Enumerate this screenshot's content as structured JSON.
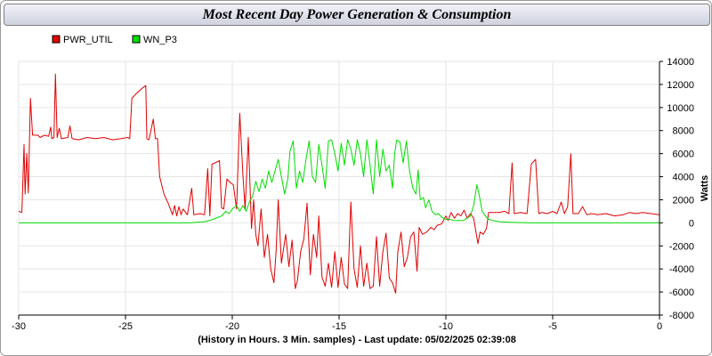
{
  "chart_data": {
    "type": "line",
    "title": "Most Recent Day Power Generation & Consumption",
    "xlabel": "(History in Hours. 3 Min. samples) - Last update: 05/02/2025 02:39:08",
    "ylabel": "Watts",
    "xlim": [
      -30,
      0
    ],
    "ylim": [
      -8000,
      14000
    ],
    "x_ticks": [
      -30,
      -25,
      -20,
      -15,
      -10,
      -5,
      0
    ],
    "y_ticks": [
      -8000,
      -6000,
      -4000,
      -2000,
      0,
      2000,
      4000,
      6000,
      8000,
      10000,
      12000,
      14000
    ],
    "grid": true,
    "legend_position": "top-left",
    "series": [
      {
        "name": "PWR_UTIL",
        "color": "#e00000",
        "points": [
          [
            -30.0,
            1000
          ],
          [
            -29.85,
            900
          ],
          [
            -29.75,
            6800
          ],
          [
            -29.7,
            2500
          ],
          [
            -29.62,
            6000
          ],
          [
            -29.55,
            2600
          ],
          [
            -29.45,
            10800
          ],
          [
            -29.35,
            7600
          ],
          [
            -29.1,
            7600
          ],
          [
            -29.0,
            7400
          ],
          [
            -28.8,
            7600
          ],
          [
            -28.6,
            7500
          ],
          [
            -28.5,
            8300
          ],
          [
            -28.45,
            7300
          ],
          [
            -28.35,
            7400
          ],
          [
            -28.28,
            12900
          ],
          [
            -28.2,
            7400
          ],
          [
            -28.1,
            8200
          ],
          [
            -28.0,
            7300
          ],
          [
            -27.7,
            7400
          ],
          [
            -27.6,
            8400
          ],
          [
            -27.5,
            7300
          ],
          [
            -27.2,
            7200
          ],
          [
            -26.8,
            7400
          ],
          [
            -26.4,
            7300
          ],
          [
            -26.0,
            7400
          ],
          [
            -25.6,
            7200
          ],
          [
            -25.2,
            7300
          ],
          [
            -24.9,
            7400
          ],
          [
            -24.8,
            7300
          ],
          [
            -24.7,
            10800
          ],
          [
            -24.5,
            11200
          ],
          [
            -24.2,
            11700
          ],
          [
            -24.05,
            11900
          ],
          [
            -24.0,
            7300
          ],
          [
            -23.9,
            7200
          ],
          [
            -23.7,
            9000
          ],
          [
            -23.6,
            7300
          ],
          [
            -23.5,
            7300
          ],
          [
            -23.4,
            4000
          ],
          [
            -23.2,
            2500
          ],
          [
            -23.0,
            1700
          ],
          [
            -22.8,
            700
          ],
          [
            -22.7,
            1500
          ],
          [
            -22.6,
            600
          ],
          [
            -22.5,
            1400
          ],
          [
            -22.4,
            700
          ],
          [
            -22.3,
            1200
          ],
          [
            -22.1,
            700
          ],
          [
            -21.9,
            3000
          ],
          [
            -21.8,
            700
          ],
          [
            -21.5,
            800
          ],
          [
            -21.3,
            700
          ],
          [
            -21.15,
            4700
          ],
          [
            -21.05,
            600
          ],
          [
            -20.95,
            5100
          ],
          [
            -20.8,
            5200
          ],
          [
            -20.6,
            5400
          ],
          [
            -20.5,
            1300
          ],
          [
            -20.4,
            1200
          ],
          [
            -20.25,
            3800
          ],
          [
            -20.1,
            3500
          ],
          [
            -19.95,
            3300
          ],
          [
            -19.8,
            1200
          ],
          [
            -19.65,
            9500
          ],
          [
            -19.5,
            4100
          ],
          [
            -19.4,
            1200
          ],
          [
            -19.25,
            7400
          ],
          [
            -19.1,
            -500
          ],
          [
            -19.0,
            2000
          ],
          [
            -18.9,
            -1000
          ],
          [
            -18.8,
            -2000
          ],
          [
            -18.65,
            1200
          ],
          [
            -18.5,
            -3000
          ],
          [
            -18.35,
            -1000
          ],
          [
            -18.2,
            -4000
          ],
          [
            -18.05,
            -5200
          ],
          [
            -17.95,
            -2500
          ],
          [
            -17.85,
            2000
          ],
          [
            -17.7,
            -3500
          ],
          [
            -17.5,
            -1000
          ],
          [
            -17.35,
            -3800
          ],
          [
            -17.2,
            -1500
          ],
          [
            -17.05,
            -5700
          ],
          [
            -16.95,
            -5000
          ],
          [
            -16.8,
            -2500
          ],
          [
            -16.65,
            -1400
          ],
          [
            -16.5,
            1700
          ],
          [
            -16.35,
            -4500
          ],
          [
            -16.2,
            -1000
          ],
          [
            -16.05,
            -3000
          ],
          [
            -15.95,
            600
          ],
          [
            -15.8,
            -4700
          ],
          [
            -15.65,
            -5500
          ],
          [
            -15.5,
            -3500
          ],
          [
            -15.35,
            -5600
          ],
          [
            -15.2,
            -2500
          ],
          [
            -15.05,
            -5600
          ],
          [
            -14.9,
            -3000
          ],
          [
            -14.75,
            -5300
          ],
          [
            -14.6,
            -5700
          ],
          [
            -14.45,
            1800
          ],
          [
            -14.3,
            -4000
          ],
          [
            -14.15,
            -5600
          ],
          [
            -14.0,
            -2000
          ],
          [
            -13.85,
            -5500
          ],
          [
            -13.7,
            -3500
          ],
          [
            -13.55,
            -5700
          ],
          [
            -13.4,
            -5500
          ],
          [
            -13.25,
            -1200
          ],
          [
            -13.1,
            -5500
          ],
          [
            -12.95,
            -2500
          ],
          [
            -12.8,
            -900
          ],
          [
            -12.65,
            -4800
          ],
          [
            -12.5,
            -5200
          ],
          [
            -12.35,
            -6100
          ],
          [
            -12.25,
            -2500
          ],
          [
            -12.1,
            -800
          ],
          [
            -11.95,
            -3800
          ],
          [
            -11.8,
            -3000
          ],
          [
            -11.65,
            -1200
          ],
          [
            -11.5,
            -800
          ],
          [
            -11.35,
            -4200
          ],
          [
            -11.25,
            -400
          ],
          [
            -11.1,
            -1000
          ],
          [
            -10.9,
            -800
          ],
          [
            -10.7,
            -400
          ],
          [
            -10.55,
            -600
          ],
          [
            -10.4,
            -200
          ],
          [
            -10.2,
            -100
          ],
          [
            -10.0,
            600
          ],
          [
            -9.9,
            200
          ],
          [
            -9.75,
            900
          ],
          [
            -9.6,
            400
          ],
          [
            -9.45,
            800
          ],
          [
            -9.3,
            600
          ],
          [
            -9.15,
            1100
          ],
          [
            -9.0,
            400
          ],
          [
            -8.85,
            800
          ],
          [
            -8.7,
            400
          ],
          [
            -8.5,
            -1800
          ],
          [
            -8.4,
            -800
          ],
          [
            -8.25,
            -1000
          ],
          [
            -8.1,
            -500
          ],
          [
            -8.0,
            900
          ],
          [
            -7.8,
            900
          ],
          [
            -7.5,
            900
          ],
          [
            -7.25,
            1000
          ],
          [
            -7.05,
            800
          ],
          [
            -6.9,
            5200
          ],
          [
            -6.8,
            800
          ],
          [
            -6.5,
            900
          ],
          [
            -6.2,
            800
          ],
          [
            -6.0,
            5100
          ],
          [
            -5.8,
            5500
          ],
          [
            -5.65,
            800
          ],
          [
            -5.5,
            900
          ],
          [
            -5.25,
            800
          ],
          [
            -5.0,
            1000
          ],
          [
            -4.8,
            800
          ],
          [
            -4.6,
            1800
          ],
          [
            -4.45,
            800
          ],
          [
            -4.3,
            1400
          ],
          [
            -4.15,
            6000
          ],
          [
            -4.05,
            800
          ],
          [
            -3.8,
            800
          ],
          [
            -3.6,
            1400
          ],
          [
            -3.4,
            700
          ],
          [
            -3.2,
            800
          ],
          [
            -2.9,
            700
          ],
          [
            -2.5,
            800
          ],
          [
            -2.1,
            600
          ],
          [
            -1.7,
            700
          ],
          [
            -1.4,
            900
          ],
          [
            -1.1,
            800
          ],
          [
            -0.8,
            900
          ],
          [
            -0.4,
            800
          ],
          [
            0.0,
            700
          ]
        ]
      },
      {
        "name": "WN_P3",
        "color": "#00dd00",
        "points": [
          [
            -30.0,
            0
          ],
          [
            -22.0,
            0
          ],
          [
            -21.3,
            100
          ],
          [
            -20.9,
            300
          ],
          [
            -20.5,
            600
          ],
          [
            -20.3,
            1000
          ],
          [
            -20.15,
            800
          ],
          [
            -20.0,
            1200
          ],
          [
            -19.8,
            1500
          ],
          [
            -19.65,
            1000
          ],
          [
            -19.5,
            1500
          ],
          [
            -19.35,
            1000
          ],
          [
            -19.2,
            1800
          ],
          [
            -19.05,
            2300
          ],
          [
            -18.9,
            3600
          ],
          [
            -18.75,
            2700
          ],
          [
            -18.6,
            3800
          ],
          [
            -18.45,
            3000
          ],
          [
            -18.3,
            4500
          ],
          [
            -18.15,
            3500
          ],
          [
            -18.0,
            4500
          ],
          [
            -17.85,
            5500
          ],
          [
            -17.7,
            4000
          ],
          [
            -17.55,
            2500
          ],
          [
            -17.4,
            3800
          ],
          [
            -17.3,
            6200
          ],
          [
            -17.15,
            7100
          ],
          [
            -17.0,
            3000
          ],
          [
            -16.85,
            4500
          ],
          [
            -16.7,
            3500
          ],
          [
            -16.55,
            5500
          ],
          [
            -16.4,
            7100
          ],
          [
            -16.25,
            4000
          ],
          [
            -16.1,
            3500
          ],
          [
            -15.95,
            6800
          ],
          [
            -15.8,
            5000
          ],
          [
            -15.65,
            3000
          ],
          [
            -15.5,
            7100
          ],
          [
            -15.35,
            7200
          ],
          [
            -15.2,
            6000
          ],
          [
            -15.05,
            4500
          ],
          [
            -14.9,
            6900
          ],
          [
            -14.75,
            5000
          ],
          [
            -14.6,
            7200
          ],
          [
            -14.45,
            6400
          ],
          [
            -14.3,
            5000
          ],
          [
            -14.15,
            7200
          ],
          [
            -14.0,
            6000
          ],
          [
            -13.85,
            4000
          ],
          [
            -13.7,
            7200
          ],
          [
            -13.55,
            5000
          ],
          [
            -13.4,
            2500
          ],
          [
            -13.25,
            7200
          ],
          [
            -13.1,
            4000
          ],
          [
            -12.95,
            6400
          ],
          [
            -12.8,
            4500
          ],
          [
            -12.65,
            5000
          ],
          [
            -12.5,
            3000
          ],
          [
            -12.4,
            6000
          ],
          [
            -12.3,
            7200
          ],
          [
            -12.15,
            7000
          ],
          [
            -12.0,
            5200
          ],
          [
            -11.85,
            7100
          ],
          [
            -11.7,
            4500
          ],
          [
            -11.55,
            3000
          ],
          [
            -11.4,
            2500
          ],
          [
            -11.3,
            4600
          ],
          [
            -11.2,
            2000
          ],
          [
            -11.05,
            2200
          ],
          [
            -10.95,
            1300
          ],
          [
            -10.8,
            2000
          ],
          [
            -10.65,
            1000
          ],
          [
            -10.5,
            700
          ],
          [
            -10.35,
            800
          ],
          [
            -10.2,
            500
          ],
          [
            -10.0,
            300
          ],
          [
            -9.8,
            300
          ],
          [
            -9.6,
            200
          ],
          [
            -9.4,
            200
          ],
          [
            -9.2,
            200
          ],
          [
            -9.0,
            400
          ],
          [
            -8.85,
            600
          ],
          [
            -8.7,
            1500
          ],
          [
            -8.55,
            3300
          ],
          [
            -8.45,
            2500
          ],
          [
            -8.3,
            1000
          ],
          [
            -8.15,
            600
          ],
          [
            -8.0,
            300
          ],
          [
            -7.8,
            200
          ],
          [
            -7.5,
            100
          ],
          [
            -7.0,
            50
          ],
          [
            -6.0,
            0
          ],
          [
            -3.0,
            0
          ],
          [
            0.0,
            0
          ]
        ]
      }
    ]
  }
}
